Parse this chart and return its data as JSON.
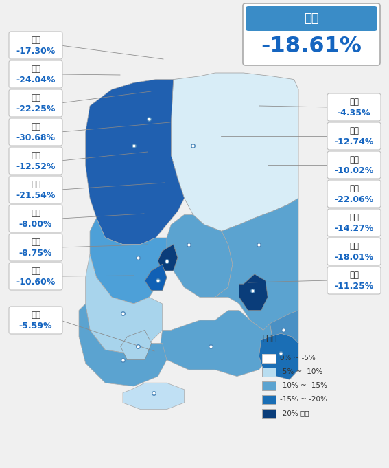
{
  "title_region": "전국",
  "title_value": "-18.61%",
  "background_color": "#f0f0f0",
  "regions_left": [
    {
      "name": "서울",
      "value": "-17.30%"
    },
    {
      "name": "인천",
      "value": "-24.04%"
    },
    {
      "name": "경기",
      "value": "-22.25%"
    },
    {
      "name": "세종",
      "value": "-30.68%"
    },
    {
      "name": "충남",
      "value": "-12.52%"
    },
    {
      "name": "대전",
      "value": "-21.54%"
    },
    {
      "name": "전북",
      "value": "-8.00%"
    },
    {
      "name": "광주",
      "value": "-8.75%"
    },
    {
      "name": "전남",
      "value": "-10.60%"
    },
    {
      "name": "제주",
      "value": "-5.59%"
    }
  ],
  "regions_right": [
    {
      "name": "강원",
      "value": "-4.35%"
    },
    {
      "name": "충북",
      "value": "-12.74%"
    },
    {
      "name": "경북",
      "value": "-10.02%"
    },
    {
      "name": "대구",
      "value": "-22.06%"
    },
    {
      "name": "울산",
      "value": "-14.27%"
    },
    {
      "name": "부산",
      "value": "-18.01%"
    },
    {
      "name": "경남",
      "value": "-11.25%"
    }
  ],
  "legend_title": "변동률",
  "legend_items": [
    {
      "label": "0% ~ -5%",
      "color": "#ffffff",
      "border": "#cccccc"
    },
    {
      "label": "-5% ~ -10%",
      "color": "#b8ddf0",
      "border": "#aaaaaa"
    },
    {
      "label": "-10% ~ -15%",
      "color": "#5ba3d0",
      "border": "#aaaaaa"
    },
    {
      "label": "-15% ~ -20%",
      "color": "#1a6eb5",
      "border": "#aaaaaa"
    },
    {
      "label": "-20% 이하",
      "color": "#0a3d7a",
      "border": "#aaaaaa"
    }
  ],
  "province_colors": {
    "gangwon": "#d8edf7",
    "gyeonggi": "#2060b0",
    "seoul": "#1858a8",
    "incheon": "#1050a0",
    "chungbuk": "#5ba3d0",
    "gyeongbuk": "#5ba3d0",
    "daegu": "#0a3d7a",
    "chungnam": "#4da0d8",
    "sejong": "#0a3d7a",
    "daejeon": "#1060b5",
    "jeonbuk": "#a8d4ec",
    "ulsan": "#4a90c4",
    "gyeongnam": "#5ba3d0",
    "busan": "#1a6eb5",
    "jeonnam": "#5ba3d0",
    "gwangju": "#a8d4ec",
    "jeju": "#c0e0f4"
  }
}
